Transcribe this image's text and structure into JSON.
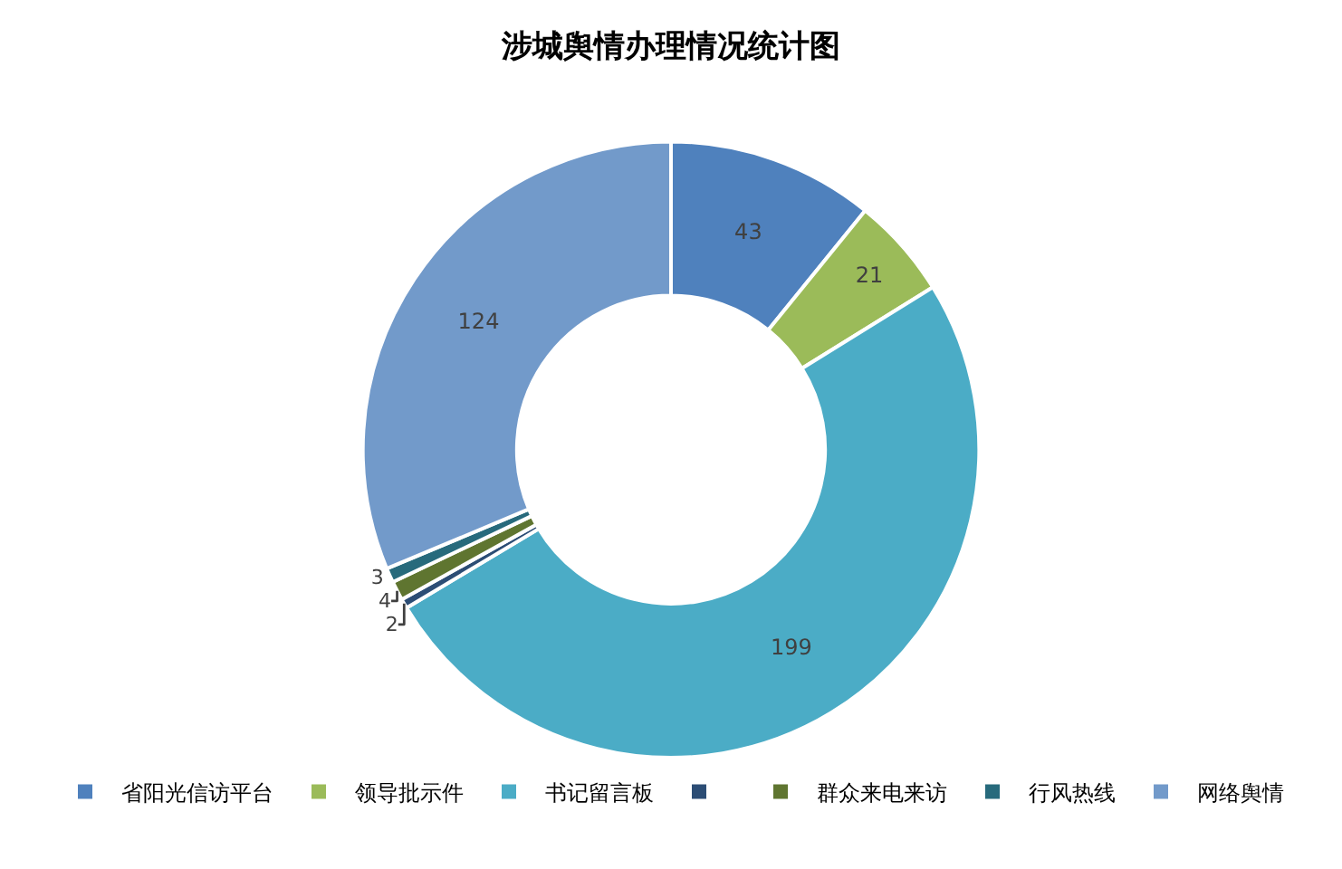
{
  "chart_data": {
    "type": "donut",
    "title": "涉城舆情办理情况统计图",
    "categories": [
      "省阳光信访平台",
      "领导批示件",
      "书记留言板",
      null,
      "群众来电来访",
      "行风热线",
      "网络舆情"
    ],
    "values": [
      43,
      21,
      199,
      2,
      4,
      3,
      124
    ],
    "colors": [
      "#4f81bd",
      "#9bbb59",
      "#4bacc6",
      "#2c4d75",
      "#5f7530",
      "#276a7c",
      "#729aca"
    ],
    "data_labels": true,
    "legend": "bottom"
  }
}
